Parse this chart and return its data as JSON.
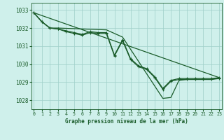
{
  "title": "Graphe pression niveau de la mer (hPa)",
  "background_color": "#cff0eb",
  "grid_color": "#9ecec8",
  "line_color": "#1a5c2a",
  "xlim": [
    -0.3,
    23.3
  ],
  "ylim": [
    1027.5,
    1033.4
  ],
  "yticks": [
    1028,
    1029,
    1030,
    1031,
    1032,
    1033
  ],
  "xticks": [
    0,
    1,
    2,
    3,
    4,
    5,
    6,
    7,
    8,
    9,
    10,
    11,
    12,
    13,
    14,
    15,
    16,
    17,
    18,
    19,
    20,
    21,
    22,
    23
  ],
  "line1_x": [
    0,
    1,
    2,
    3,
    4,
    5,
    6,
    7,
    8,
    9,
    10,
    11,
    12,
    13,
    14,
    15,
    16,
    17,
    18,
    19,
    20,
    21,
    22,
    23
  ],
  "line1_y": [
    1032.85,
    1032.35,
    1032.0,
    1031.95,
    1031.85,
    1031.75,
    1031.65,
    1031.8,
    1031.75,
    1031.75,
    1030.5,
    1031.35,
    1030.3,
    1029.9,
    1029.75,
    1029.3,
    1028.65,
    1029.1,
    1029.2,
    1029.2,
    1029.2,
    1029.2,
    1029.2,
    1029.25
  ],
  "line2_x": [
    0,
    1,
    2,
    3,
    4,
    5,
    6,
    7,
    8,
    9,
    10,
    11,
    12,
    13,
    14,
    15,
    16,
    17,
    18,
    19,
    20,
    21,
    22,
    23
  ],
  "line2_y": [
    1032.85,
    1032.35,
    1032.0,
    1031.95,
    1031.8,
    1031.7,
    1031.6,
    1031.75,
    1031.7,
    1031.7,
    1030.45,
    1031.3,
    1030.25,
    1029.85,
    1029.7,
    1029.25,
    1028.6,
    1029.05,
    1029.15,
    1029.15,
    1029.15,
    1029.15,
    1029.15,
    1029.2
  ],
  "line3_x": [
    0,
    23
  ],
  "line3_y": [
    1032.85,
    1029.25
  ],
  "line4_x": [
    0,
    1,
    2,
    3,
    9,
    11,
    16,
    17,
    18,
    19,
    20,
    21,
    22,
    23
  ],
  "line4_y": [
    1032.85,
    1032.35,
    1032.0,
    1032.0,
    1031.9,
    1031.5,
    1028.1,
    1028.15,
    1029.1,
    1029.15,
    1029.15,
    1029.15,
    1029.15,
    1029.25
  ],
  "linewidth": 0.9,
  "marker_size": 3.0
}
